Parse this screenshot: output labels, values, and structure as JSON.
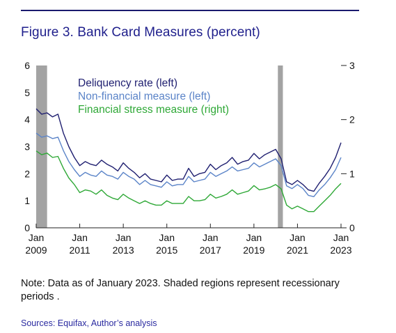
{
  "figure": {
    "title": "Figure 3. Bank Card Measures (percent)",
    "note": "Note: Data as of January 2023. Shaded regions represent recessionary periods .",
    "sources": "Sources: Equifax, Author’s analysis"
  },
  "chart_data": {
    "type": "line",
    "legend_position": "top-left",
    "grid": false,
    "x_range": [
      2009.0,
      2023.0
    ],
    "left_ylim": [
      0,
      6
    ],
    "right_ylim": [
      0,
      3
    ],
    "left_ticks": [
      "0",
      "1",
      "2",
      "3",
      "4",
      "5",
      "6"
    ],
    "right_ticks": [
      "0",
      "1",
      "2",
      "3"
    ],
    "x_ticks": [
      {
        "value": 2009,
        "month": "Jan",
        "year": "2009"
      },
      {
        "value": 2011,
        "month": "Jan",
        "year": "2011"
      },
      {
        "value": 2013,
        "month": "Jan",
        "year": "2013"
      },
      {
        "value": 2015,
        "month": "Jan",
        "year": "2015"
      },
      {
        "value": 2017,
        "month": "Jan",
        "year": "2017"
      },
      {
        "value": 2019,
        "month": "Jan",
        "year": "2019"
      },
      {
        "value": 2021,
        "month": "Jan",
        "year": "2021"
      },
      {
        "value": 2023,
        "month": "Jan",
        "year": "2023"
      }
    ],
    "recessions": [
      [
        2009.0,
        2009.5
      ],
      [
        2020.1,
        2020.33
      ]
    ],
    "series": [
      {
        "name": "Deliquency rate (left)",
        "axis": "left",
        "color": "#1f1f70",
        "x": [
          2009.0,
          2009.25,
          2009.5,
          2009.75,
          2010.0,
          2010.25,
          2010.5,
          2010.75,
          2011.0,
          2011.25,
          2011.5,
          2011.75,
          2012.0,
          2012.25,
          2012.5,
          2012.75,
          2013.0,
          2013.25,
          2013.5,
          2013.75,
          2014.0,
          2014.25,
          2014.5,
          2014.75,
          2015.0,
          2015.25,
          2015.5,
          2015.75,
          2016.0,
          2016.25,
          2016.5,
          2016.75,
          2017.0,
          2017.25,
          2017.5,
          2017.75,
          2018.0,
          2018.25,
          2018.5,
          2018.75,
          2019.0,
          2019.25,
          2019.5,
          2019.75,
          2020.0,
          2020.25,
          2020.5,
          2020.75,
          2021.0,
          2021.25,
          2021.5,
          2021.75,
          2022.0,
          2022.25,
          2022.5,
          2022.75,
          2023.0
        ],
        "values": [
          4.4,
          4.2,
          4.25,
          4.1,
          4.2,
          3.5,
          3.0,
          2.6,
          2.3,
          2.45,
          2.35,
          2.3,
          2.5,
          2.35,
          2.25,
          2.1,
          2.4,
          2.2,
          2.05,
          1.85,
          2.0,
          1.8,
          1.75,
          1.7,
          1.95,
          1.75,
          1.8,
          1.8,
          2.2,
          1.9,
          2.0,
          2.05,
          2.35,
          2.15,
          2.3,
          2.4,
          2.6,
          2.35,
          2.45,
          2.5,
          2.75,
          2.55,
          2.7,
          2.8,
          2.9,
          2.55,
          1.7,
          1.6,
          1.75,
          1.6,
          1.4,
          1.35,
          1.65,
          1.9,
          2.2,
          2.6,
          3.15
        ]
      },
      {
        "name": "Non-financial measure (left)",
        "axis": "left",
        "color": "#5b84c8",
        "x": [
          2009.0,
          2009.25,
          2009.5,
          2009.75,
          2010.0,
          2010.25,
          2010.5,
          2010.75,
          2011.0,
          2011.25,
          2011.5,
          2011.75,
          2012.0,
          2012.25,
          2012.5,
          2012.75,
          2013.0,
          2013.25,
          2013.5,
          2013.75,
          2014.0,
          2014.25,
          2014.5,
          2014.75,
          2015.0,
          2015.25,
          2015.5,
          2015.75,
          2016.0,
          2016.25,
          2016.5,
          2016.75,
          2017.0,
          2017.25,
          2017.5,
          2017.75,
          2018.0,
          2018.25,
          2018.5,
          2018.75,
          2019.0,
          2019.25,
          2019.5,
          2019.75,
          2020.0,
          2020.25,
          2020.5,
          2020.75,
          2021.0,
          2021.25,
          2021.5,
          2021.75,
          2022.0,
          2022.25,
          2022.5,
          2022.75,
          2023.0
        ],
        "values": [
          3.5,
          3.35,
          3.4,
          3.3,
          3.35,
          2.85,
          2.45,
          2.15,
          1.9,
          2.05,
          1.95,
          1.9,
          2.1,
          1.95,
          1.9,
          1.8,
          2.05,
          1.9,
          1.8,
          1.6,
          1.75,
          1.6,
          1.55,
          1.5,
          1.7,
          1.55,
          1.6,
          1.6,
          1.9,
          1.7,
          1.75,
          1.8,
          2.05,
          1.9,
          2.0,
          2.1,
          2.25,
          2.1,
          2.15,
          2.2,
          2.4,
          2.25,
          2.35,
          2.45,
          2.55,
          2.3,
          1.55,
          1.45,
          1.6,
          1.45,
          1.2,
          1.15,
          1.4,
          1.6,
          1.85,
          2.15,
          2.6
        ]
      },
      {
        "name": "Financial stress measure (right)",
        "axis": "right",
        "color": "#2ea836",
        "x": [
          2009.0,
          2009.25,
          2009.5,
          2009.75,
          2010.0,
          2010.25,
          2010.5,
          2010.75,
          2011.0,
          2011.25,
          2011.5,
          2011.75,
          2012.0,
          2012.25,
          2012.5,
          2012.75,
          2013.0,
          2013.25,
          2013.5,
          2013.75,
          2014.0,
          2014.25,
          2014.5,
          2014.75,
          2015.0,
          2015.25,
          2015.5,
          2015.75,
          2016.0,
          2016.25,
          2016.5,
          2016.75,
          2017.0,
          2017.25,
          2017.5,
          2017.75,
          2018.0,
          2018.25,
          2018.5,
          2018.75,
          2019.0,
          2019.25,
          2019.5,
          2019.75,
          2020.0,
          2020.25,
          2020.5,
          2020.75,
          2021.0,
          2021.25,
          2021.5,
          2021.75,
          2022.0,
          2022.25,
          2022.5,
          2022.75,
          2023.0
        ],
        "values": [
          1.42,
          1.35,
          1.38,
          1.3,
          1.32,
          1.1,
          0.92,
          0.8,
          0.65,
          0.7,
          0.68,
          0.62,
          0.7,
          0.6,
          0.55,
          0.52,
          0.62,
          0.55,
          0.5,
          0.45,
          0.5,
          0.45,
          0.42,
          0.42,
          0.5,
          0.45,
          0.45,
          0.45,
          0.58,
          0.5,
          0.5,
          0.52,
          0.62,
          0.55,
          0.58,
          0.62,
          0.7,
          0.62,
          0.65,
          0.68,
          0.78,
          0.7,
          0.72,
          0.75,
          0.8,
          0.72,
          0.42,
          0.35,
          0.4,
          0.35,
          0.3,
          0.3,
          0.4,
          0.5,
          0.6,
          0.72,
          0.82
        ]
      }
    ]
  }
}
